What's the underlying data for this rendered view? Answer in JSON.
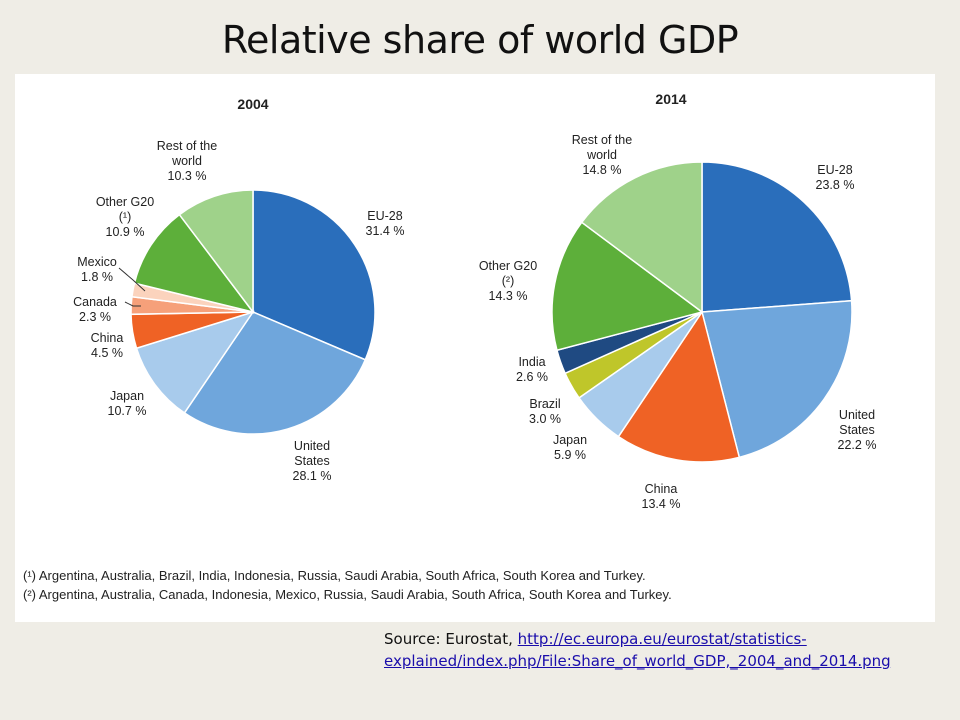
{
  "slide": {
    "title": "Relative share of world GDP"
  },
  "footnotes": [
    "(¹) Argentina, Australia, Brazil, India, Indonesia, Russia, Saudi Arabia, South Africa, South Korea and Turkey.",
    "(²) Argentina, Australia, Canada, Indonesia, Mexico, Russia, Saudi Arabia, South Africa, South Korea and Turkey."
  ],
  "source": {
    "prefix": "Source: Eurostat, ",
    "link_line1": "http://ec.europa.eu/eurostat/statistics-",
    "link_line2": "explained/index.php/File:Share_of_world_GDP,_2004_and_2014.png"
  },
  "chart_data": [
    {
      "type": "pie",
      "title": "2004",
      "slices": [
        {
          "label": [
            "EU-28"
          ],
          "value": 31.4,
          "value_text": "31.4 %",
          "color": "#2a6ebb"
        },
        {
          "label": [
            "United",
            "States"
          ],
          "value": 28.1,
          "value_text": "28.1 %",
          "color": "#6fa6dc"
        },
        {
          "label": [
            "Japan"
          ],
          "value": 10.7,
          "value_text": "10.7 %",
          "color": "#a8cbec"
        },
        {
          "label": [
            "China"
          ],
          "value": 4.5,
          "value_text": "4.5 %",
          "color": "#ef6225"
        },
        {
          "label": [
            "Canada"
          ],
          "value": 2.3,
          "value_text": "2.3 %",
          "color": "#f6a07a"
        },
        {
          "label": [
            "Mexico"
          ],
          "value": 1.8,
          "value_text": "1.8 %",
          "color": "#fbd3bd"
        },
        {
          "label": [
            "Other G20",
            "(¹)"
          ],
          "value": 10.9,
          "value_text": "10.9 %",
          "color": "#5daf3a"
        },
        {
          "label": [
            "Rest of the",
            "world"
          ],
          "value": 10.3,
          "value_text": "10.3 %",
          "color": "#9fd28a"
        }
      ]
    },
    {
      "type": "pie",
      "title": "2014",
      "slices": [
        {
          "label": [
            "EU-28"
          ],
          "value": 23.8,
          "value_text": "23.8 %",
          "color": "#2a6ebb"
        },
        {
          "label": [
            "United",
            "States"
          ],
          "value": 22.2,
          "value_text": "22.2 %",
          "color": "#6fa6dc"
        },
        {
          "label": [
            "China"
          ],
          "value": 13.4,
          "value_text": "13.4 %",
          "color": "#ef6225"
        },
        {
          "label": [
            "Japan"
          ],
          "value": 5.9,
          "value_text": "5.9 %",
          "color": "#a8cbec"
        },
        {
          "label": [
            "Brazil"
          ],
          "value": 3.0,
          "value_text": "3.0 %",
          "color": "#bfc62a"
        },
        {
          "label": [
            "India"
          ],
          "value": 2.6,
          "value_text": "2.6 %",
          "color": "#1f4a82"
        },
        {
          "label": [
            "Other G20",
            "(²)"
          ],
          "value": 14.3,
          "value_text": "14.3 %",
          "color": "#5daf3a"
        },
        {
          "label": [
            "Rest of the",
            "world"
          ],
          "value": 14.8,
          "value_text": "14.8 %",
          "color": "#9fd28a"
        }
      ]
    }
  ]
}
